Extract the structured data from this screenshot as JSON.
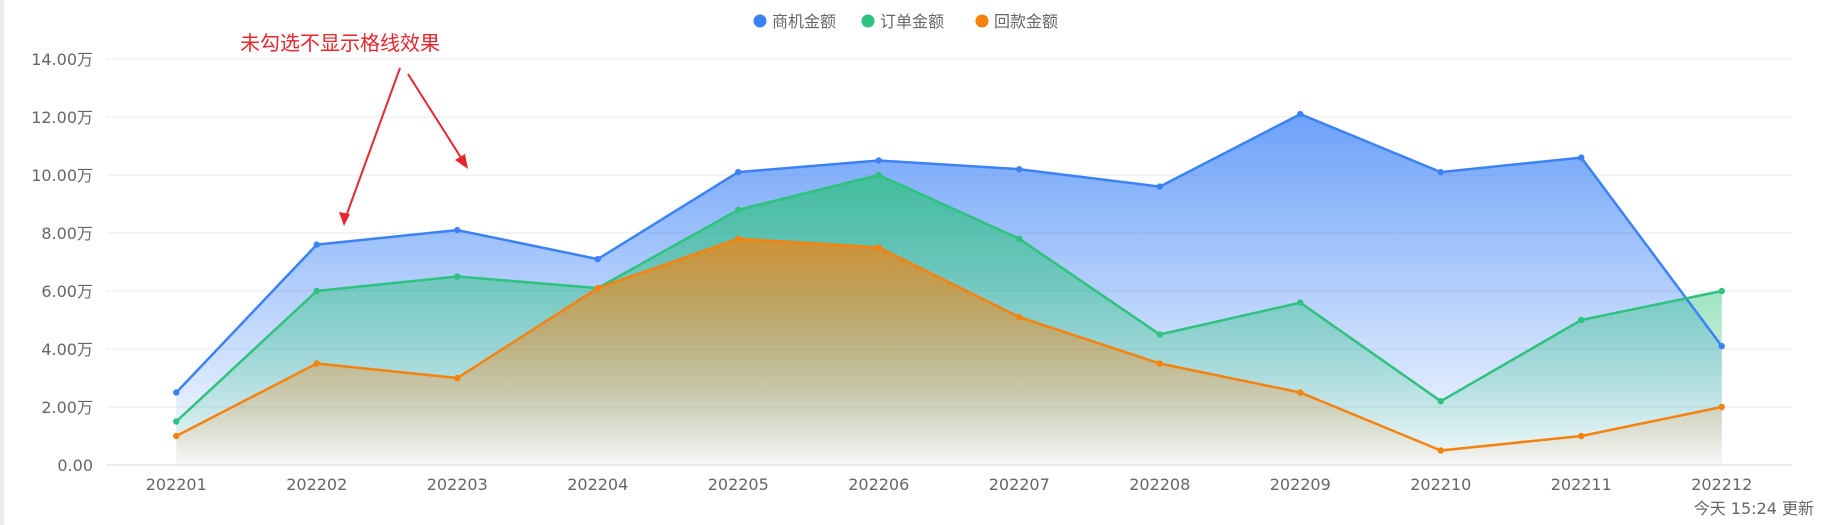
{
  "chart_data": {
    "type": "area",
    "categories": [
      "202201",
      "202202",
      "202203",
      "202204",
      "202205",
      "202206",
      "202207",
      "202208",
      "202209",
      "202210",
      "202211",
      "202212"
    ],
    "ylim": [
      0,
      140000
    ],
    "yticks": [
      0,
      20000,
      40000,
      60000,
      80000,
      100000,
      120000,
      140000
    ],
    "ytick_labels": [
      "0.00",
      "2.00万",
      "4.00万",
      "6.00万",
      "8.00万",
      "10.00万",
      "12.00万",
      "14.00万"
    ],
    "grid": true,
    "legend": "top-center",
    "series": [
      {
        "name": "商机金额",
        "color": "#3b82f6",
        "values": [
          25000,
          76000,
          81000,
          71000,
          101000,
          105000,
          102000,
          96000,
          121000,
          101000,
          106000,
          41000
        ]
      },
      {
        "name": "订单金额",
        "color": "#2ec27e",
        "values": [
          15000,
          60000,
          65000,
          61000,
          88000,
          100000,
          78000,
          45000,
          56000,
          22000,
          50000,
          60000
        ]
      },
      {
        "name": "回款金额",
        "color": "#f5820d",
        "values": [
          10000,
          35000,
          30000,
          61000,
          78000,
          75000,
          51000,
          35000,
          25000,
          5000,
          10000,
          20000
        ]
      }
    ],
    "annotations": [
      {
        "text": "未勾选不显示格线效果",
        "color": "#e8262c"
      }
    ]
  },
  "footer": {
    "update_text": "今天 15:24 更新"
  }
}
